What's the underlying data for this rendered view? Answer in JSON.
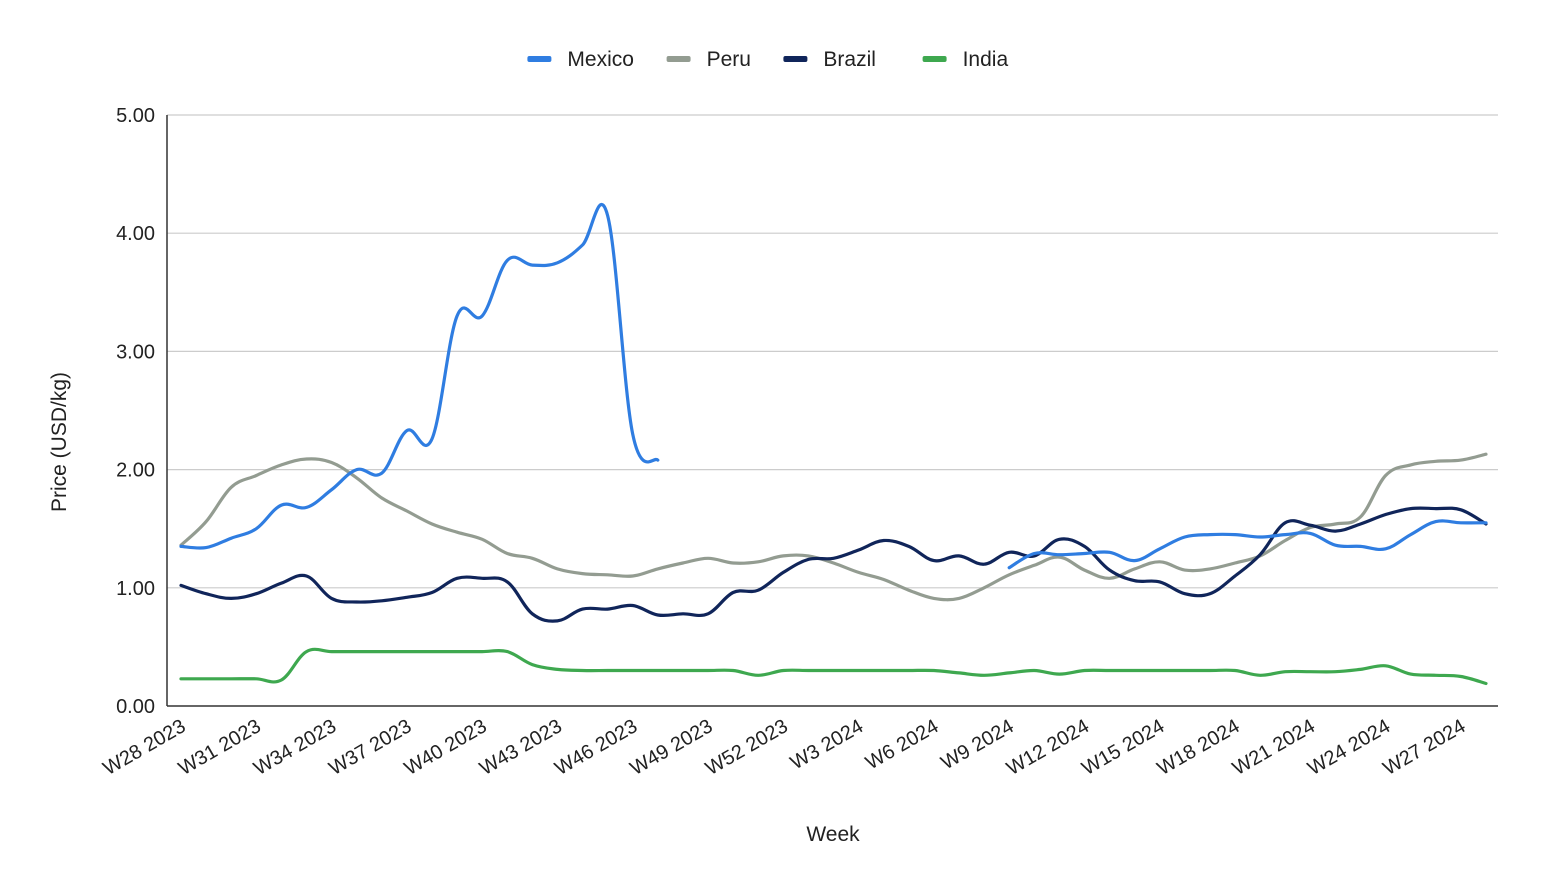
{
  "chart_data": {
    "type": "line",
    "title": "",
    "xlabel": "Week",
    "ylabel": "Price (USD/kg)",
    "ylim": [
      0,
      5
    ],
    "y_ticks": [
      "0.00",
      "1.00",
      "2.00",
      "3.00",
      "4.00",
      "5.00"
    ],
    "x_tick_labels": [
      "W28 2023",
      "W31 2023",
      "W34 2023",
      "W37 2023",
      "W40 2023",
      "W43 2023",
      "W46 2023",
      "W49 2023",
      "W52 2023",
      "W3 2024",
      "W6 2024",
      "W9 2024",
      "W12 2024",
      "W15 2024",
      "W18 2024",
      "W21 2024",
      "W24 2024",
      "W27 2024"
    ],
    "x": [
      "W28 2023",
      "W29 2023",
      "W30 2023",
      "W31 2023",
      "W32 2023",
      "W33 2023",
      "W34 2023",
      "W35 2023",
      "W36 2023",
      "W37 2023",
      "W38 2023",
      "W39 2023",
      "W40 2023",
      "W41 2023",
      "W42 2023",
      "W43 2023",
      "W44 2023",
      "W45 2023",
      "W46 2023",
      "W47 2023",
      "W48 2023",
      "W49 2023",
      "W50 2023",
      "W51 2023",
      "W52 2023",
      "W1 2024",
      "W2 2024",
      "W3 2024",
      "W4 2024",
      "W5 2024",
      "W6 2024",
      "W7 2024",
      "W8 2024",
      "W9 2024",
      "W10 2024",
      "W11 2024",
      "W12 2024",
      "W13 2024",
      "W14 2024",
      "W15 2024",
      "W16 2024",
      "W17 2024",
      "W18 2024",
      "W19 2024",
      "W20 2024",
      "W21 2024",
      "W22 2024",
      "W23 2024",
      "W24 2024",
      "W25 2024",
      "W26 2024",
      "W27 2024",
      "W28 2024"
    ],
    "legend_position": "top-center",
    "grid": true,
    "series": [
      {
        "name": "Mexico",
        "color": "#2f7de1",
        "values": [
          1.35,
          1.34,
          1.42,
          1.5,
          1.7,
          1.68,
          1.83,
          2.0,
          1.97,
          2.33,
          2.26,
          3.3,
          3.3,
          3.77,
          3.73,
          3.75,
          3.9,
          4.15,
          2.3,
          2.08,
          null,
          null,
          null,
          null,
          null,
          null,
          null,
          null,
          null,
          null,
          null,
          null,
          null,
          1.17,
          1.29,
          1.28,
          1.29,
          1.3,
          1.23,
          1.33,
          1.43,
          1.45,
          1.45,
          1.43,
          1.45,
          1.46,
          1.36,
          1.35,
          1.33,
          1.45,
          1.56,
          1.55,
          1.55
        ]
      },
      {
        "name": "Peru",
        "color": "#939c91",
        "values": [
          1.36,
          1.56,
          1.85,
          1.95,
          2.04,
          2.09,
          2.06,
          1.93,
          1.76,
          1.65,
          1.54,
          1.47,
          1.41,
          1.29,
          1.25,
          1.16,
          1.12,
          1.11,
          1.1,
          1.16,
          1.21,
          1.25,
          1.21,
          1.22,
          1.27,
          1.27,
          1.21,
          1.13,
          1.07,
          0.98,
          0.91,
          0.91,
          1.0,
          1.11,
          1.19,
          1.26,
          1.15,
          1.08,
          1.16,
          1.22,
          1.15,
          1.16,
          1.21,
          1.27,
          1.4,
          1.51,
          1.54,
          1.6,
          1.95,
          2.04,
          2.07,
          2.08,
          2.13
        ]
      },
      {
        "name": "Brazil",
        "color": "#10255a",
        "values": [
          1.02,
          0.95,
          0.91,
          0.95,
          1.04,
          1.1,
          0.91,
          0.88,
          0.89,
          0.92,
          0.96,
          1.08,
          1.08,
          1.05,
          0.78,
          0.72,
          0.82,
          0.82,
          0.85,
          0.77,
          0.78,
          0.78,
          0.96,
          0.98,
          1.13,
          1.24,
          1.25,
          1.32,
          1.4,
          1.35,
          1.23,
          1.27,
          1.2,
          1.3,
          1.27,
          1.41,
          1.35,
          1.15,
          1.06,
          1.05,
          0.95,
          0.95,
          1.1,
          1.28,
          1.55,
          1.53,
          1.48,
          1.54,
          1.62,
          1.67,
          1.67,
          1.66,
          1.54
        ]
      },
      {
        "name": "India",
        "color": "#3ea84f",
        "values": [
          0.23,
          0.23,
          0.23,
          0.23,
          0.22,
          0.46,
          0.46,
          0.46,
          0.46,
          0.46,
          0.46,
          0.46,
          0.46,
          0.46,
          0.35,
          0.31,
          0.3,
          0.3,
          0.3,
          0.3,
          0.3,
          0.3,
          0.3,
          0.26,
          0.3,
          0.3,
          0.3,
          0.3,
          0.3,
          0.3,
          0.3,
          0.28,
          0.26,
          0.28,
          0.3,
          0.27,
          0.3,
          0.3,
          0.3,
          0.3,
          0.3,
          0.3,
          0.3,
          0.26,
          0.29,
          0.29,
          0.29,
          0.31,
          0.34,
          0.27,
          0.26,
          0.25,
          0.19
        ]
      }
    ]
  }
}
